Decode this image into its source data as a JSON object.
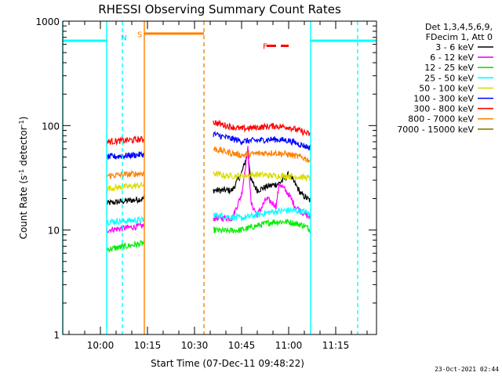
{
  "chart_data": {
    "type": "line",
    "title": "RHESSI Observing Summary Count Rates",
    "xlabel": "Start Time (07-Dec-11 09:48:22)",
    "ylabel_parts": [
      "Count Rate (s",
      "-1",
      " detector",
      "-1",
      ")"
    ],
    "yscale": "log",
    "ylim": [
      1,
      1000
    ],
    "xlim": [
      "09:48",
      "11:28"
    ],
    "y_ticks": [
      {
        "value": 1,
        "label": "1"
      },
      {
        "value": 10,
        "label": "10"
      },
      {
        "value": 100,
        "label": "100"
      },
      {
        "value": 1000,
        "label": "1000"
      }
    ],
    "x_ticks": [
      {
        "value": "10:00",
        "label": "10:00"
      },
      {
        "value": "10:15",
        "label": "10:15"
      },
      {
        "value": "10:30",
        "label": "10:30"
      },
      {
        "value": "10:45",
        "label": "10:45"
      },
      {
        "value": "11:00",
        "label": "11:00"
      },
      {
        "value": "11:15",
        "label": "11:15"
      }
    ],
    "legend_header": [
      "Det 1,3,4,5,6,9,",
      "FDecim 1, Att 0"
    ],
    "series": [
      {
        "name": "3 - 6 keV",
        "color": "#000000",
        "segments": [
          {
            "x": [
              "10:02",
              "10:14"
            ],
            "y": [
              18,
              20
            ]
          },
          {
            "x": [
              "10:36",
              "10:38",
              "10:42",
              "10:45",
              "10:47",
              "10:48",
              "10:50",
              "10:53",
              "10:57",
              "11:00",
              "11:02",
              "11:04",
              "11:07"
            ],
            "y": [
              24,
              24,
              24,
              35,
              55,
              30,
              24,
              26,
              28,
              34,
              28,
              22,
              19
            ]
          }
        ]
      },
      {
        "name": "6 - 12 keV",
        "color": "#ff00ff",
        "segments": [
          {
            "x": [
              "10:02",
              "10:14"
            ],
            "y": [
              10,
              11
            ]
          },
          {
            "x": [
              "10:36",
              "10:38",
              "10:42",
              "10:45",
              "10:47",
              "10:48",
              "10:50",
              "10:53",
              "10:56",
              "10:57",
              "11:00",
              "11:02",
              "11:04",
              "11:07"
            ],
            "y": [
              13,
              13,
              13,
              22,
              60,
              18,
              14,
              20,
              17,
              28,
              22,
              17,
              15,
              13
            ]
          }
        ]
      },
      {
        "name": "12 - 25 keV",
        "color": "#00ee00",
        "segments": [
          {
            "x": [
              "10:02",
              "10:14"
            ],
            "y": [
              6.5,
              7.5
            ]
          },
          {
            "x": [
              "10:36",
              "10:40",
              "10:45",
              "10:50",
              "10:55",
              "11:00",
              "11:05",
              "11:07"
            ],
            "y": [
              10,
              9.8,
              10,
              11,
              12,
              12,
              11,
              10
            ]
          }
        ]
      },
      {
        "name": "25 - 50 keV",
        "color": "#00ffff",
        "segments": [
          {
            "x": [
              "10:02",
              "10:14"
            ],
            "y": [
              12,
              12.5
            ]
          },
          {
            "x": [
              "10:36",
              "10:40",
              "10:45",
              "10:50",
              "10:55",
              "11:00",
              "11:05",
              "11:07"
            ],
            "y": [
              14,
              13.5,
              13,
              14,
              15,
              15.5,
              15,
              14
            ]
          }
        ]
      },
      {
        "name": "50 - 100 keV",
        "color": "#dddd00",
        "segments": [
          {
            "x": [
              "10:02",
              "10:14"
            ],
            "y": [
              25,
              27
            ]
          },
          {
            "x": [
              "10:36",
              "10:40",
              "10:45",
              "10:50",
              "10:55",
              "11:00",
              "11:05",
              "11:07"
            ],
            "y": [
              35,
              33,
              33,
              34,
              33,
              33,
              32,
              31
            ]
          }
        ]
      },
      {
        "name": "100 - 300 keV",
        "color": "#0000ff",
        "segments": [
          {
            "x": [
              "10:02",
              "10:14"
            ],
            "y": [
              50,
              53
            ]
          },
          {
            "x": [
              "10:36",
              "10:40",
              "10:45",
              "10:50",
              "10:55",
              "11:00",
              "11:05",
              "11:07"
            ],
            "y": [
              83,
              77,
              71,
              72,
              74,
              72,
              64,
              61
            ]
          }
        ]
      },
      {
        "name": "300 - 800 keV",
        "color": "#ff0000",
        "segments": [
          {
            "x": [
              "10:02",
              "10:14"
            ],
            "y": [
              70,
              74
            ]
          },
          {
            "x": [
              "10:36",
              "10:40",
              "10:45",
              "10:50",
              "10:55",
              "11:00",
              "11:05",
              "11:07"
            ],
            "y": [
              108,
              100,
              93,
              96,
              99,
              97,
              86,
              82
            ]
          }
        ]
      },
      {
        "name": "800 - 7000 keV",
        "color": "#ff8000",
        "segments": [
          {
            "x": [
              "10:02",
              "10:14"
            ],
            "y": [
              33,
              35
            ]
          },
          {
            "x": [
              "10:36",
              "10:40",
              "10:45",
              "10:50",
              "10:55",
              "11:00",
              "11:05",
              "11:07"
            ],
            "y": [
              60,
              56,
              52,
              54,
              55,
              53,
              49,
              46
            ]
          }
        ]
      },
      {
        "name": "7000 - 15000 keV",
        "color": "#808000",
        "segments": []
      }
    ],
    "flags": [
      {
        "label": "N",
        "color": "#00ffff",
        "text_x": "10:07",
        "text_y": 700,
        "text_color": "#00ccff"
      },
      {
        "label": "S",
        "color": "#ff8000",
        "text_x": "10:12",
        "text_y": 750
      },
      {
        "label": "F",
        "color": "#ff0000",
        "text_x": "10:52",
        "text_y": 580
      }
    ],
    "orbit_bars": [
      {
        "color": "#00ffff",
        "x": [
          "09:48",
          "10:02"
        ],
        "y": 650
      },
      {
        "color": "#00ffff",
        "x": [
          "11:07",
          "11:28"
        ],
        "y": 650
      },
      {
        "color": "#ff8000",
        "x": [
          "10:14",
          "10:33"
        ],
        "y": 760
      },
      {
        "color": "#ff0000",
        "x": [
          "10:53",
          "11:00"
        ],
        "y": 580,
        "dashed": true
      }
    ],
    "vlines": [
      {
        "x": "09:48",
        "color": "#00ffff",
        "dashed": false
      },
      {
        "x": "10:02",
        "color": "#00ffff",
        "dashed": false
      },
      {
        "x": "10:07",
        "color": "#00ffff",
        "dashed": true
      },
      {
        "x": "10:14",
        "color": "#ff8000",
        "dashed": false
      },
      {
        "x": "10:33",
        "color": "#ff8000",
        "dashed": true
      },
      {
        "x": "11:07",
        "color": "#00ffff",
        "dashed": false
      },
      {
        "x": "11:22",
        "color": "#00ffff",
        "dashed": true
      }
    ],
    "grid": false,
    "legend_position": "right"
  },
  "timestamp": "23-Oct-2021 02:44"
}
